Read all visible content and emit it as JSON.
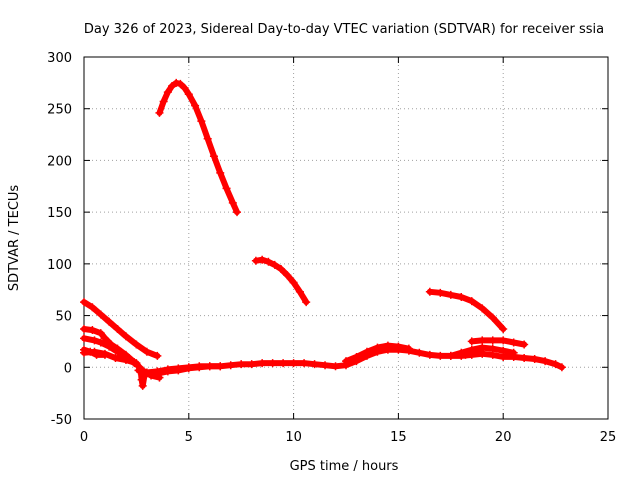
{
  "chart_data": {
    "type": "scatter",
    "title": "Day 326 of 2023, Sidereal Day-to-day VTEC variation (SDTVAR) for receiver ssia",
    "xlabel": "GPS time / hours",
    "ylabel": "SDTVAR / TECUs",
    "xlim": [
      0,
      25
    ],
    "ylim": [
      -50,
      300
    ],
    "xticks": [
      0,
      5,
      10,
      15,
      20,
      25
    ],
    "yticks": [
      -50,
      0,
      50,
      100,
      150,
      200,
      250,
      300
    ],
    "grid": true,
    "marker": "+",
    "color": "#ff0000",
    "series": [
      {
        "name": "arc-1",
        "points": [
          [
            3.6,
            246
          ],
          [
            3.8,
            257
          ],
          [
            4.0,
            266
          ],
          [
            4.2,
            272
          ],
          [
            4.4,
            275
          ],
          [
            4.6,
            274
          ],
          [
            4.8,
            270
          ],
          [
            5.0,
            264
          ],
          [
            5.3,
            253
          ],
          [
            5.6,
            238
          ],
          [
            5.9,
            221
          ],
          [
            6.2,
            204
          ],
          [
            6.5,
            188
          ],
          [
            6.8,
            173
          ],
          [
            7.1,
            159
          ],
          [
            7.3,
            150
          ]
        ]
      },
      {
        "name": "arc-2",
        "points": [
          [
            8.2,
            103
          ],
          [
            8.5,
            104
          ],
          [
            8.8,
            102
          ],
          [
            9.1,
            99
          ],
          [
            9.4,
            95
          ],
          [
            9.7,
            89
          ],
          [
            10.0,
            82
          ],
          [
            10.3,
            73
          ],
          [
            10.6,
            63
          ]
        ]
      },
      {
        "name": "arc-3",
        "points": [
          [
            16.5,
            73
          ],
          [
            17.0,
            72
          ],
          [
            17.5,
            70
          ],
          [
            18.0,
            68
          ],
          [
            18.5,
            64
          ],
          [
            19.0,
            57
          ],
          [
            19.5,
            48
          ],
          [
            20.0,
            37
          ]
        ]
      },
      {
        "name": "arc-4",
        "points": [
          [
            0.0,
            63
          ],
          [
            0.4,
            58
          ],
          [
            0.8,
            51
          ],
          [
            1.2,
            44
          ],
          [
            1.6,
            37
          ],
          [
            2.0,
            30
          ],
          [
            2.5,
            22
          ],
          [
            3.0,
            15
          ],
          [
            3.5,
            11
          ]
        ]
      },
      {
        "name": "arc-5",
        "points": [
          [
            0.0,
            37
          ],
          [
            0.4,
            36
          ],
          [
            0.8,
            33
          ],
          [
            1.0,
            28
          ],
          [
            1.3,
            22
          ],
          [
            1.6,
            18
          ],
          [
            2.0,
            12
          ],
          [
            2.4,
            5
          ],
          [
            2.8,
            -3
          ],
          [
            3.2,
            -8
          ],
          [
            3.6,
            -10
          ]
        ]
      },
      {
        "name": "arc-6",
        "points": [
          [
            0.0,
            28
          ],
          [
            0.5,
            26
          ],
          [
            0.8,
            24
          ],
          [
            1.2,
            20
          ],
          [
            1.6,
            15
          ],
          [
            2.0,
            10
          ],
          [
            2.4,
            4
          ]
        ]
      },
      {
        "name": "arc-7",
        "points": [
          [
            0.0,
            14
          ],
          [
            0.5,
            15
          ],
          [
            1.0,
            13
          ],
          [
            1.5,
            9
          ],
          [
            2.0,
            7
          ],
          [
            2.5,
            4
          ],
          [
            2.7,
            -2
          ],
          [
            2.75,
            -12
          ],
          [
            2.8,
            -18
          ],
          [
            2.9,
            -6
          ],
          [
            3.0,
            -6
          ],
          [
            3.5,
            -6
          ],
          [
            4.0,
            -4
          ],
          [
            4.5,
            -3
          ],
          [
            5.0,
            -1
          ],
          [
            5.5,
            0
          ],
          [
            6.0,
            1
          ],
          [
            6.5,
            1
          ]
        ]
      },
      {
        "name": "arc-8",
        "points": [
          [
            0.0,
            17
          ],
          [
            0.3,
            15
          ],
          [
            0.6,
            12
          ],
          [
            1.0,
            12
          ]
        ]
      },
      {
        "name": "arc-9",
        "points": [
          [
            2.6,
            -3
          ],
          [
            3.0,
            -5
          ],
          [
            3.5,
            -4
          ],
          [
            4.0,
            -2
          ],
          [
            4.5,
            -1
          ],
          [
            5.0,
            0
          ],
          [
            5.5,
            1
          ],
          [
            6.0,
            1
          ],
          [
            6.5,
            1
          ],
          [
            7.0,
            2
          ],
          [
            7.5,
            3
          ],
          [
            8.0,
            3
          ],
          [
            8.5,
            4
          ],
          [
            9.0,
            4
          ],
          [
            9.5,
            4
          ],
          [
            10.0,
            4
          ],
          [
            10.5,
            4
          ],
          [
            11.0,
            3
          ],
          [
            11.5,
            2
          ],
          [
            12.0,
            1
          ],
          [
            12.5,
            2
          ],
          [
            13.0,
            6
          ],
          [
            13.5,
            11
          ],
          [
            14.0,
            15
          ],
          [
            14.5,
            17
          ],
          [
            15.0,
            17
          ],
          [
            15.5,
            16
          ],
          [
            16.0,
            14
          ],
          [
            16.5,
            12
          ],
          [
            17.0,
            11
          ],
          [
            17.5,
            11
          ],
          [
            18.0,
            11
          ],
          [
            18.5,
            12
          ],
          [
            19.0,
            13
          ],
          [
            19.5,
            12
          ],
          [
            20.0,
            10
          ],
          [
            20.5,
            10
          ],
          [
            21.0,
            9
          ],
          [
            21.5,
            8
          ],
          [
            22.0,
            6
          ],
          [
            22.5,
            3
          ],
          [
            22.8,
            0
          ]
        ]
      },
      {
        "name": "arc-10",
        "points": [
          [
            12.5,
            6
          ],
          [
            13.0,
            10
          ],
          [
            13.5,
            15
          ],
          [
            14.0,
            19
          ],
          [
            14.5,
            21
          ],
          [
            15.0,
            20
          ],
          [
            15.5,
            18
          ]
        ]
      },
      {
        "name": "arc-11",
        "points": [
          [
            17.5,
            11
          ],
          [
            18.0,
            14
          ],
          [
            18.5,
            17
          ],
          [
            19.0,
            19
          ],
          [
            19.5,
            18
          ],
          [
            20.0,
            16
          ],
          [
            20.5,
            14
          ]
        ]
      },
      {
        "name": "arc-12",
        "points": [
          [
            18.2,
            12
          ],
          [
            18.5,
            14
          ],
          [
            18.8,
            15
          ],
          [
            19.0,
            14
          ]
        ]
      },
      {
        "name": "arc-13",
        "points": [
          [
            18.5,
            25
          ],
          [
            19.0,
            26
          ],
          [
            19.5,
            26
          ],
          [
            20.0,
            26
          ],
          [
            20.5,
            24
          ],
          [
            21.0,
            22
          ]
        ]
      }
    ]
  }
}
